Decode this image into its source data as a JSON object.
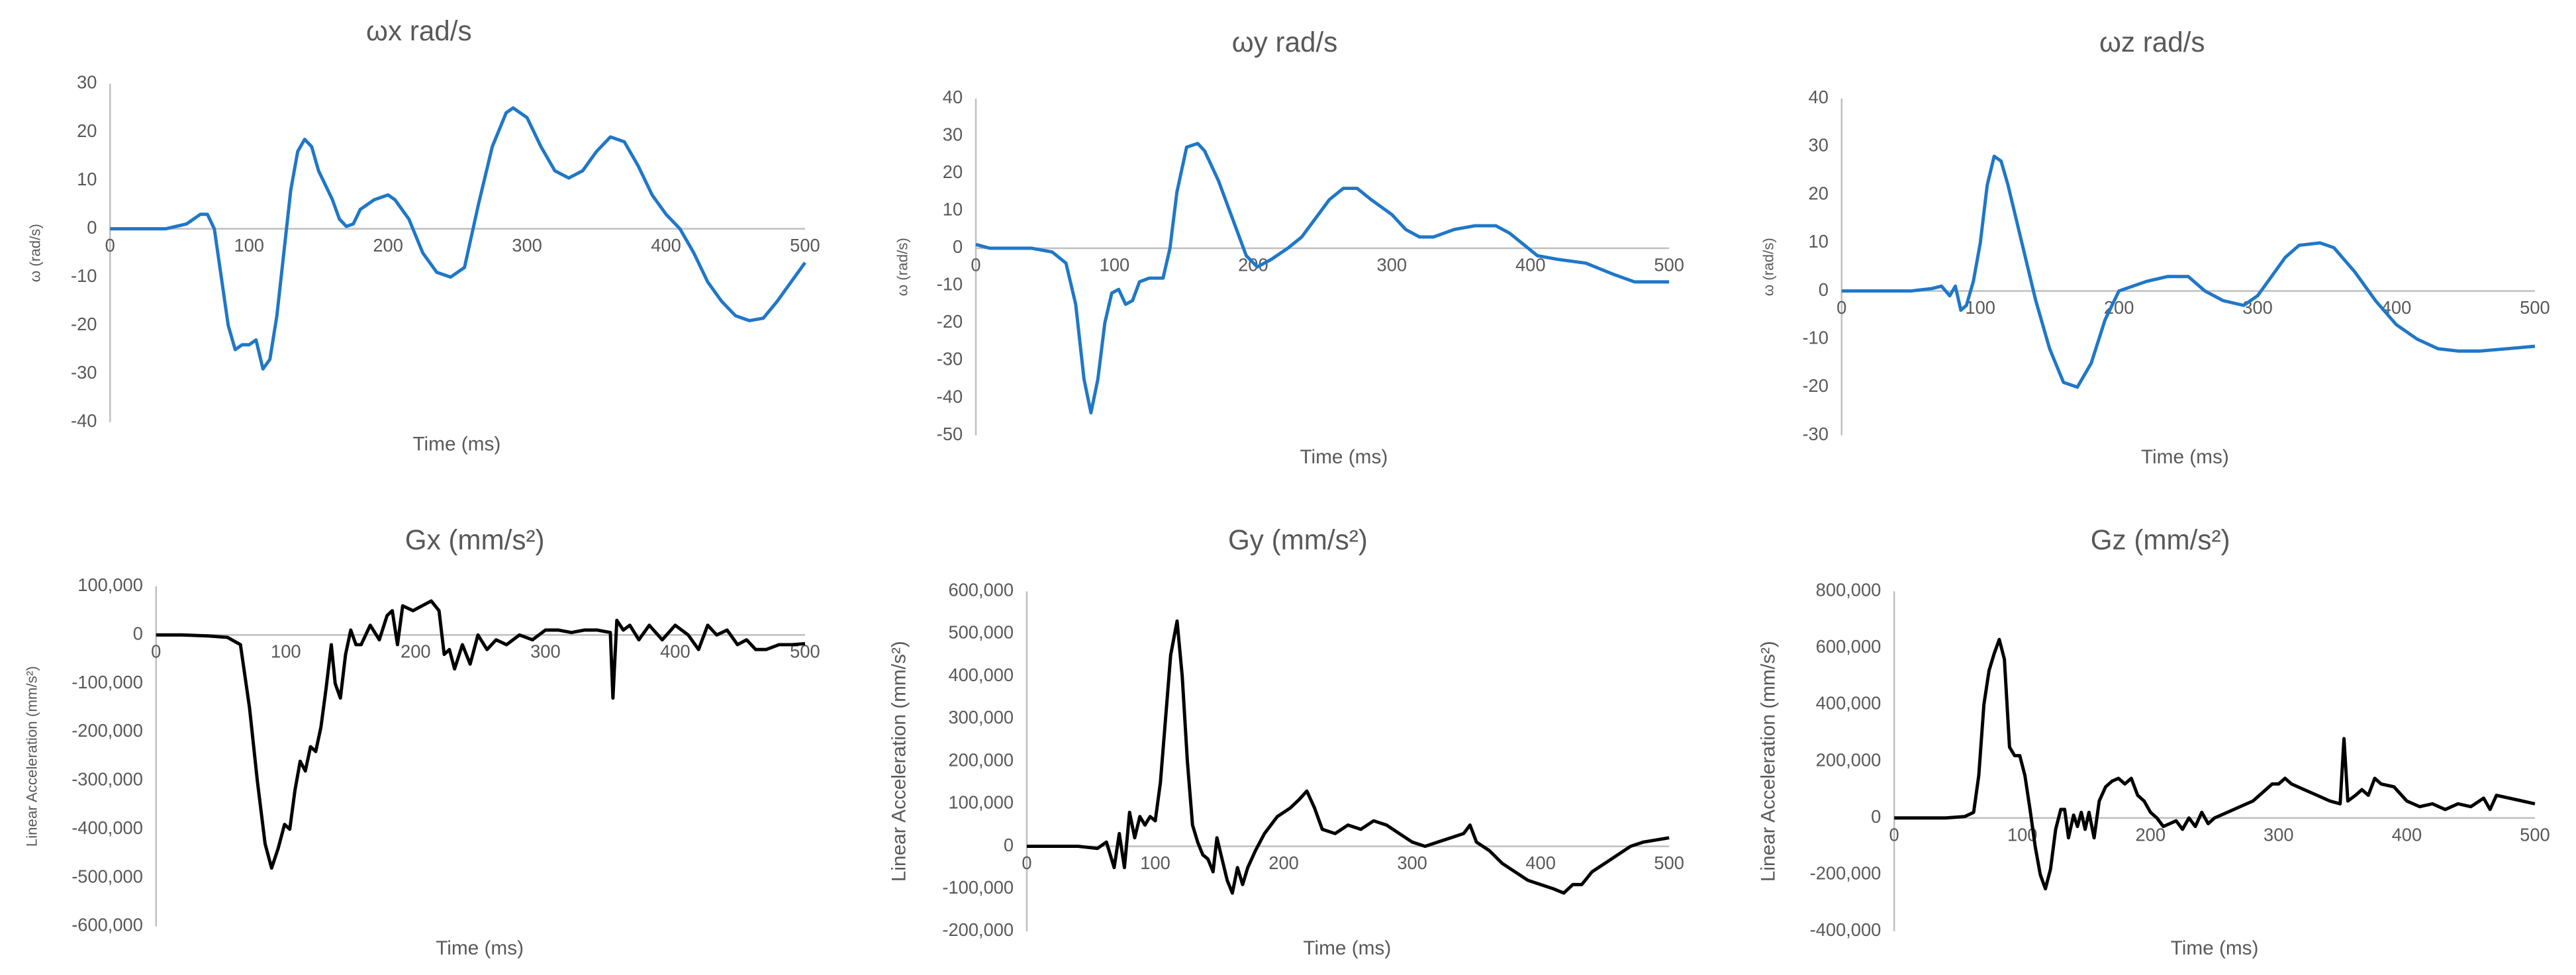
{
  "chart_data": [
    {
      "type": "line",
      "title": "ωx rad/s",
      "x_label": "Time (ms)",
      "y_label": "ω (rad/s)",
      "color": "#1f77c8",
      "xlim": [
        0,
        500
      ],
      "ylim": [
        -40,
        30
      ],
      "xticks": [
        0,
        100,
        200,
        300,
        400,
        500
      ],
      "yticks": [
        30,
        20,
        10,
        0,
        -10,
        -20,
        -30,
        -40
      ],
      "x": [
        0,
        40,
        55,
        65,
        70,
        75,
        80,
        85,
        90,
        95,
        100,
        105,
        110,
        115,
        120,
        125,
        130,
        135,
        140,
        145,
        150,
        155,
        160,
        165,
        170,
        175,
        180,
        190,
        200,
        205,
        215,
        225,
        235,
        245,
        255,
        265,
        275,
        285,
        290,
        300,
        310,
        320,
        330,
        340,
        350,
        360,
        370,
        380,
        390,
        400,
        410,
        420,
        430,
        440,
        450,
        460,
        470,
        480,
        490,
        500
      ],
      "values": [
        0,
        0,
        1,
        3,
        3,
        0,
        -10,
        -20,
        -25,
        -24,
        -24,
        -23,
        -29,
        -27,
        -18,
        -5,
        8,
        16,
        18.5,
        17,
        12,
        9,
        6,
        2,
        0.5,
        1,
        4,
        6,
        7,
        6,
        2,
        -5,
        -9,
        -10,
        -8,
        5,
        17,
        24,
        25,
        23,
        17,
        12,
        10.5,
        12,
        16,
        19,
        18,
        13,
        7,
        3,
        0,
        -5,
        -11,
        -15,
        -18,
        -19,
        -18.5,
        -15,
        -11,
        -7
      ]
    },
    {
      "type": "line",
      "title": "ωy rad/s",
      "x_label": "Time (ms)",
      "y_label": "ω (rad/s)",
      "color": "#1f77c8",
      "xlim": [
        0,
        500
      ],
      "ylim": [
        -50,
        40
      ],
      "xticks": [
        0,
        100,
        200,
        300,
        400,
        500
      ],
      "yticks": [
        40,
        30,
        20,
        10,
        0,
        -10,
        -20,
        -30,
        -40,
        -50
      ],
      "x": [
        0,
        10,
        40,
        55,
        65,
        72,
        78,
        83,
        88,
        93,
        98,
        103,
        108,
        113,
        118,
        125,
        135,
        140,
        145,
        152,
        160,
        165,
        175,
        185,
        195,
        203,
        213,
        225,
        235,
        245,
        255,
        265,
        275,
        285,
        300,
        310,
        320,
        330,
        345,
        360,
        375,
        385,
        395,
        405,
        420,
        440,
        460,
        475,
        490,
        500
      ],
      "values": [
        1,
        0,
        0,
        -1,
        -4,
        -15,
        -35,
        -44,
        -35,
        -20,
        -12,
        -11,
        -15,
        -14,
        -9,
        -8,
        -8,
        0,
        15,
        27,
        28,
        26,
        18,
        8,
        -2,
        -5,
        -3,
        0,
        3,
        8,
        13,
        16,
        16,
        13,
        9,
        5,
        3,
        3,
        5,
        6,
        6,
        4,
        1,
        -2,
        -3,
        -4,
        -7,
        -9,
        -9,
        -9
      ]
    },
    {
      "type": "line",
      "title": "ωz rad/s",
      "x_label": "Time (ms)",
      "y_label": "ω (rad/s)",
      "color": "#1f77c8",
      "xlim": [
        0,
        500
      ],
      "ylim": [
        -30,
        40
      ],
      "xticks": [
        0,
        100,
        200,
        300,
        400,
        500
      ],
      "yticks": [
        40,
        30,
        20,
        10,
        0,
        -10,
        -20,
        -30
      ],
      "x": [
        0,
        50,
        65,
        72,
        78,
        82,
        86,
        90,
        95,
        100,
        105,
        110,
        115,
        120,
        130,
        140,
        150,
        160,
        170,
        180,
        190,
        200,
        210,
        220,
        235,
        250,
        262,
        275,
        290,
        300,
        310,
        320,
        330,
        345,
        355,
        370,
        385,
        400,
        415,
        430,
        445,
        460,
        480,
        500
      ],
      "values": [
        0,
        0,
        0.5,
        1,
        -1,
        1,
        -4,
        -3,
        2,
        10,
        22,
        28,
        27,
        22,
        10,
        -2,
        -12,
        -19,
        -20,
        -15,
        -6,
        0,
        1,
        2,
        3,
        3,
        0,
        -2,
        -3,
        -1,
        3,
        7,
        9.5,
        10,
        9,
        4,
        -2,
        -7,
        -10,
        -12,
        -12.5,
        -12.5,
        -12,
        -11.5
      ]
    },
    {
      "type": "line",
      "title": "Gx (mm/s²)",
      "x_label": "Time (ms)",
      "y_label": "Linear Acceleration (mm/s²)",
      "color": "#000000",
      "xlim": [
        0,
        500
      ],
      "ylim": [
        -600000,
        100000
      ],
      "xticks": [
        0,
        100,
        200,
        300,
        400,
        500
      ],
      "yticks": [
        {
          "value": 100000,
          "label": "100,000"
        },
        0,
        {
          "value": -100000,
          "label": "-100,000"
        },
        {
          "value": -200000,
          "label": "-200,000"
        },
        {
          "value": -300000,
          "label": "-300,000"
        },
        {
          "value": -400000,
          "label": "-400,000"
        },
        {
          "value": -500000,
          "label": "-500,000"
        },
        {
          "value": -600000,
          "label": "-600,000"
        }
      ],
      "x": [
        0,
        20,
        40,
        55,
        65,
        72,
        78,
        84,
        89,
        94,
        99,
        103,
        107,
        111,
        115,
        119,
        123,
        127,
        131,
        135,
        138,
        142,
        146,
        150,
        154,
        158,
        165,
        172,
        178,
        182,
        186,
        190,
        198,
        205,
        212,
        218,
        222,
        226,
        230,
        236,
        242,
        248,
        255,
        262,
        270,
        280,
        290,
        300,
        310,
        320,
        330,
        340,
        350,
        352,
        355,
        360,
        365,
        372,
        380,
        390,
        400,
        410,
        418,
        425,
        432,
        440,
        448,
        455,
        462,
        470,
        480,
        490,
        500
      ],
      "values": [
        0,
        0,
        -2000,
        -5000,
        -20000,
        -150000,
        -300000,
        -430000,
        -480000,
        -440000,
        -390000,
        -400000,
        -320000,
        -260000,
        -280000,
        -230000,
        -240000,
        -190000,
        -110000,
        -20000,
        -100000,
        -130000,
        -40000,
        10000,
        -20000,
        -20000,
        20000,
        -10000,
        40000,
        50000,
        -20000,
        60000,
        50000,
        60000,
        70000,
        50000,
        -40000,
        -30000,
        -70000,
        -20000,
        -60000,
        0,
        -30000,
        -10000,
        -20000,
        0,
        -10000,
        10000,
        10000,
        5000,
        10000,
        10000,
        5000,
        -130000,
        30000,
        10000,
        20000,
        -10000,
        20000,
        -10000,
        20000,
        0,
        -30000,
        20000,
        0,
        10000,
        -20000,
        -10000,
        -30000,
        -30000,
        -20000,
        -20000,
        -18000
      ]
    },
    {
      "type": "line",
      "title": "Gy (mm/s²)",
      "x_label": "Time (ms)",
      "y_label": "Linear Acceleration (mm/s²)",
      "color": "#000000",
      "xlim": [
        0,
        500
      ],
      "ylim": [
        -200000,
        600000
      ],
      "xticks": [
        0,
        100,
        200,
        300,
        400,
        500
      ],
      "yticks": [
        {
          "value": 600000,
          "label": "600,000"
        },
        {
          "value": 500000,
          "label": "500,000"
        },
        {
          "value": 400000,
          "label": "400,000"
        },
        {
          "value": 300000,
          "label": "300,000"
        },
        {
          "value": 200000,
          "label": "200,000"
        },
        {
          "value": 100000,
          "label": "100,000"
        },
        0,
        {
          "value": -100000,
          "label": "-100,000"
        },
        {
          "value": -200000,
          "label": "-200,000"
        }
      ],
      "x": [
        0,
        40,
        55,
        62,
        68,
        72,
        76,
        80,
        84,
        88,
        92,
        96,
        100,
        104,
        108,
        112,
        117,
        121,
        125,
        129,
        133,
        137,
        141,
        145,
        148,
        152,
        156,
        160,
        164,
        168,
        172,
        178,
        185,
        195,
        205,
        212,
        218,
        224,
        230,
        240,
        250,
        260,
        270,
        280,
        290,
        300,
        310,
        320,
        330,
        340,
        345,
        350,
        360,
        370,
        380,
        390,
        400,
        410,
        418,
        425,
        432,
        440,
        450,
        460,
        470,
        480,
        490,
        500
      ],
      "values": [
        0,
        0,
        -5000,
        10000,
        -50000,
        30000,
        -50000,
        80000,
        20000,
        70000,
        50000,
        70000,
        60000,
        150000,
        300000,
        450000,
        530000,
        400000,
        200000,
        50000,
        10000,
        -20000,
        -30000,
        -60000,
        20000,
        -30000,
        -80000,
        -110000,
        -50000,
        -90000,
        -50000,
        -10000,
        30000,
        70000,
        90000,
        110000,
        130000,
        90000,
        40000,
        30000,
        50000,
        40000,
        60000,
        50000,
        30000,
        10000,
        0,
        10000,
        20000,
        30000,
        50000,
        10000,
        -10000,
        -40000,
        -60000,
        -80000,
        -90000,
        -100000,
        -110000,
        -90000,
        -90000,
        -60000,
        -40000,
        -20000,
        0,
        10000,
        15000,
        20000
      ]
    },
    {
      "type": "line",
      "title": "Gz (mm/s²)",
      "x_label": "Time (ms)",
      "y_label": "Linear Acceleration (mm/s²)",
      "color": "#000000",
      "xlim": [
        0,
        500
      ],
      "ylim": [
        -400000,
        800000
      ],
      "xticks": [
        0,
        100,
        200,
        300,
        400,
        500
      ],
      "yticks": [
        {
          "value": 800000,
          "label": "800,000"
        },
        {
          "value": 600000,
          "label": "600,000"
        },
        {
          "value": 400000,
          "label": "400,000"
        },
        {
          "value": 200000,
          "label": "200,000"
        },
        0,
        {
          "value": -200000,
          "label": "-200,000"
        },
        {
          "value": -400000,
          "label": "-400,000"
        }
      ],
      "x": [
        0,
        40,
        55,
        62,
        66,
        70,
        74,
        78,
        82,
        86,
        90,
        94,
        98,
        102,
        106,
        110,
        114,
        118,
        122,
        126,
        130,
        133,
        136,
        140,
        143,
        146,
        149,
        152,
        156,
        160,
        165,
        170,
        175,
        180,
        185,
        190,
        195,
        200,
        205,
        210,
        215,
        220,
        225,
        230,
        235,
        240,
        245,
        250,
        260,
        270,
        280,
        290,
        295,
        300,
        305,
        310,
        320,
        330,
        340,
        348,
        351,
        354,
        360,
        365,
        370,
        375,
        380,
        390,
        400,
        410,
        420,
        430,
        440,
        450,
        460,
        465,
        470,
        480,
        490,
        500
      ],
      "values": [
        0,
        0,
        5000,
        20000,
        150000,
        400000,
        520000,
        580000,
        630000,
        560000,
        250000,
        220000,
        220000,
        150000,
        30000,
        -100000,
        -200000,
        -250000,
        -180000,
        -40000,
        30000,
        30000,
        -70000,
        10000,
        -30000,
        20000,
        -40000,
        20000,
        -70000,
        60000,
        110000,
        130000,
        140000,
        120000,
        140000,
        80000,
        60000,
        20000,
        0,
        -30000,
        -20000,
        -10000,
        -40000,
        0,
        -30000,
        20000,
        -20000,
        0,
        20000,
        40000,
        60000,
        100000,
        120000,
        120000,
        140000,
        120000,
        100000,
        80000,
        60000,
        50000,
        280000,
        60000,
        80000,
        100000,
        80000,
        140000,
        120000,
        110000,
        60000,
        40000,
        50000,
        30000,
        50000,
        40000,
        70000,
        30000,
        80000,
        70000,
        60000,
        50000
      ]
    }
  ]
}
